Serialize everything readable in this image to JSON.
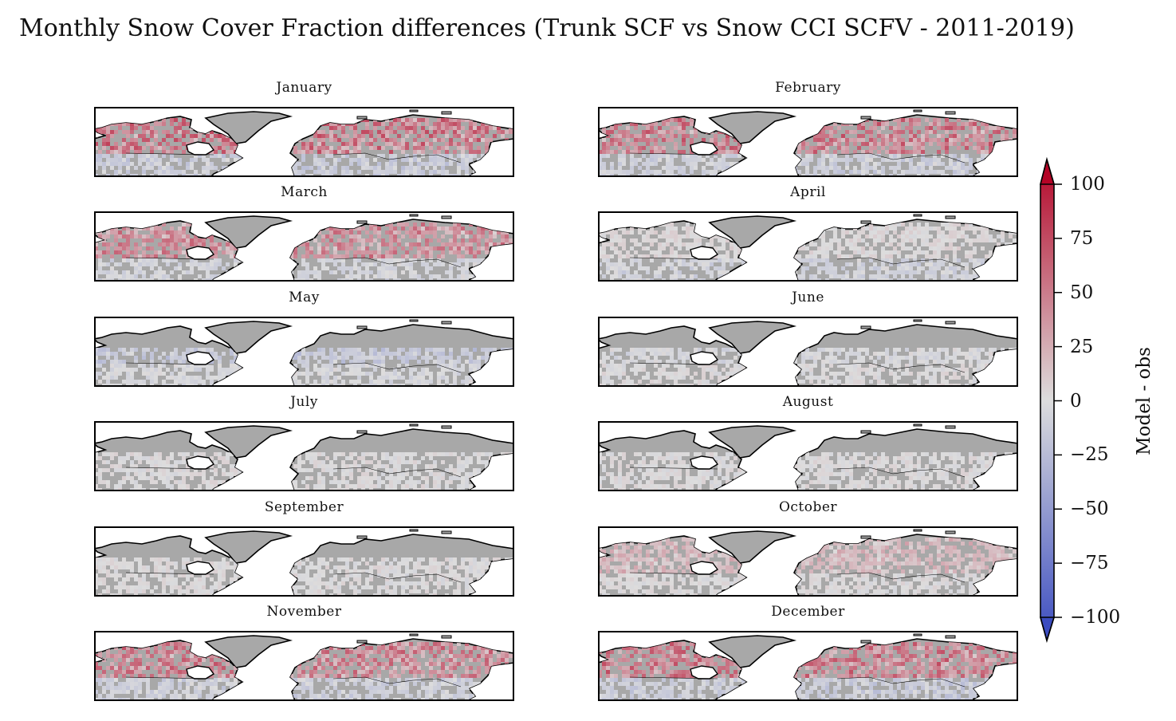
{
  "title": "Monthly Snow Cover Fraction differences (Trunk SCF vs Snow CCI SCFV - 2011-2019)",
  "panels": [
    {
      "month": "January"
    },
    {
      "month": "February"
    },
    {
      "month": "March"
    },
    {
      "month": "April"
    },
    {
      "month": "May"
    },
    {
      "month": "June"
    },
    {
      "month": "July"
    },
    {
      "month": "August"
    },
    {
      "month": "September"
    },
    {
      "month": "October"
    },
    {
      "month": "November"
    },
    {
      "month": "December"
    }
  ],
  "chart_data": {
    "type": "heatmap",
    "layout": "6 rows x 2 columns of map panels",
    "colormap": "coolwarm",
    "colorbar": {
      "label": "Model - obs",
      "range": [
        -100,
        100
      ],
      "ticks": [
        "100",
        "75",
        "50",
        "25",
        "0",
        "−25",
        "−50",
        "−75",
        "−100"
      ],
      "extend": "both",
      "colors": {
        "min": "#3b4cc0",
        "mid": "#dddddd",
        "max": "#b40426"
      }
    },
    "land_color": "#a8a8a8"
  }
}
